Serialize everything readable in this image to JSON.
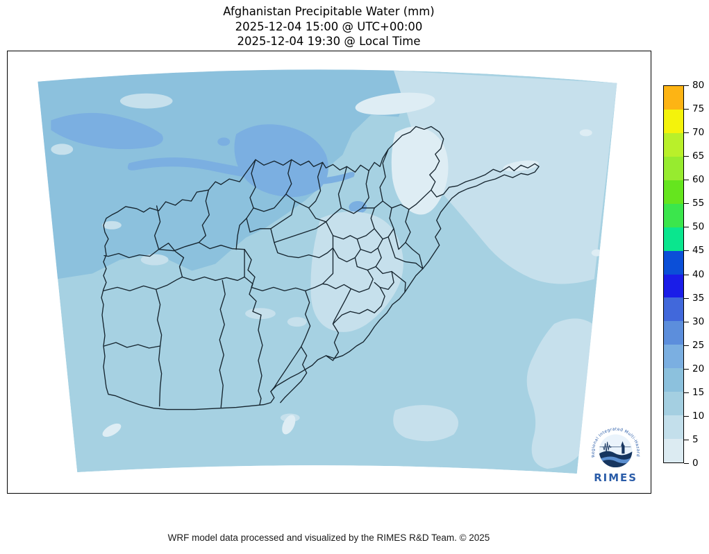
{
  "title": {
    "line1": "Afghanistan Precipitable Water (mm)",
    "line2": "2025-12-04 15:00 @ UTC+00:00",
    "line3": "2025-12-04 19:30 @ Local Time"
  },
  "footer": {
    "credit": "WRF model data processed and visualized by the RIMES R&D Team. © 2025"
  },
  "colorbar": {
    "variable": "Precipitable Water",
    "unit": "mm",
    "min": 0,
    "max": 80,
    "tick_step": 5,
    "ticks": [
      0,
      5,
      10,
      15,
      20,
      25,
      30,
      35,
      40,
      45,
      50,
      55,
      60,
      65,
      70,
      75,
      80
    ],
    "segments_top_to_bottom": [
      {
        "range": "75-80",
        "color": "#FDB414"
      },
      {
        "range": "70-75",
        "color": "#F4F30B"
      },
      {
        "range": "65-70",
        "color": "#B9F02A"
      },
      {
        "range": "60-65",
        "color": "#97EB2F"
      },
      {
        "range": "55-60",
        "color": "#65E51E"
      },
      {
        "range": "50-55",
        "color": "#3BE64C"
      },
      {
        "range": "45-50",
        "color": "#0AE68E"
      },
      {
        "range": "40-45",
        "color": "#0B4FD8"
      },
      {
        "range": "35-40",
        "color": "#1A1DE8"
      },
      {
        "range": "30-35",
        "color": "#4168DB"
      },
      {
        "range": "25-30",
        "color": "#5C8EDC"
      },
      {
        "range": "20-25",
        "color": "#7BAFE1"
      },
      {
        "range": "15-20",
        "color": "#8CC1DD"
      },
      {
        "range": "10-15",
        "color": "#A4CFE1"
      },
      {
        "range": "5-10",
        "color": "#C3DFEB"
      },
      {
        "range": "0-5",
        "color": "#DCEBF2"
      }
    ]
  },
  "map": {
    "region": "Afghanistan",
    "palette": {
      "0-5": "#DEEDF4",
      "5-10": "#C6E0EC",
      "10-15": "#A6D1E2",
      "15-20": "#8CC1DD",
      "20-25": "#7BAFE1"
    },
    "outside_color": "#FFFFFF",
    "frame_border_color": "#000000",
    "province_line_color": "#15242E"
  },
  "logo": {
    "wordmark": "RIMES",
    "ring_text": "Regional Integrated Multi-Hazard Early Warning System",
    "brand_color": "#2A5CA8",
    "navy_color": "#16355F"
  }
}
